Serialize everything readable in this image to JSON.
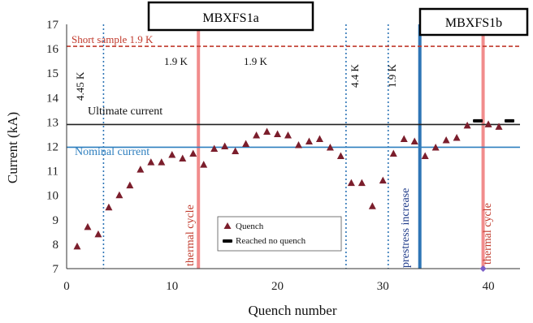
{
  "chart_data": {
    "type": "scatter",
    "xlabel": "Quench number",
    "ylabel": "Current (kA)",
    "xlim": [
      0,
      43
    ],
    "ylim": [
      7,
      17
    ],
    "x_ticks": [
      0,
      10,
      20,
      30,
      40
    ],
    "y_ticks": [
      7,
      8,
      9,
      10,
      11,
      12,
      13,
      14,
      15,
      16,
      17
    ],
    "grid": false,
    "legend_position": "bottom-center",
    "series": [
      {
        "name": "Quench",
        "marker": "triangle",
        "color": "#7b1e2c",
        "x": [
          1,
          2,
          3,
          4,
          5,
          6,
          7,
          8,
          9,
          10,
          11,
          12,
          13,
          14,
          15,
          16,
          17,
          18,
          19,
          20,
          21,
          22,
          23,
          24,
          25,
          26,
          27,
          28,
          29,
          30,
          31,
          32,
          33,
          34,
          35,
          36,
          37,
          38,
          40,
          41
        ],
        "y": [
          7.9,
          8.7,
          8.4,
          9.5,
          10.0,
          10.4,
          11.05,
          11.35,
          11.35,
          11.65,
          11.5,
          11.7,
          11.25,
          11.9,
          12.0,
          11.8,
          12.1,
          12.45,
          12.6,
          12.5,
          12.45,
          12.05,
          12.2,
          12.3,
          11.95,
          11.6,
          10.5,
          10.5,
          9.55,
          10.6,
          11.7,
          12.3,
          12.2,
          11.6,
          11.95,
          12.25,
          12.35,
          12.85,
          12.9,
          12.8
        ]
      },
      {
        "name": "Reached no quench",
        "marker": "dash",
        "color": "#000000",
        "x": [
          39,
          42
        ],
        "y": [
          13.05,
          13.05
        ]
      }
    ],
    "extra_point": {
      "x": 39.5,
      "y": 7.0,
      "color": "#7b5fc7"
    },
    "hlines": [
      {
        "y": 16.1,
        "label": "Short sample 1.9 K",
        "color": "#c0392b",
        "style": "dashed"
      },
      {
        "y": 12.9,
        "label": "Ultimate current",
        "color": "#222222",
        "style": "solid"
      },
      {
        "y": 11.97,
        "label": "Nominal current",
        "color": "#2e7fbf",
        "style": "solid"
      }
    ],
    "vlines": [
      {
        "x": 3.5,
        "color": "#2e75b6",
        "style": "dotted"
      },
      {
        "x": 26.5,
        "color": "#2e75b6",
        "style": "dotted"
      },
      {
        "x": 30.5,
        "color": "#2e75b6",
        "style": "dotted"
      },
      {
        "x": 12.5,
        "color": "#f08080",
        "style": "solid"
      },
      {
        "x": 33.5,
        "color": "#2e75b6",
        "style": "solid"
      },
      {
        "x": 39.5,
        "color": "#f08080",
        "style": "solid"
      }
    ],
    "annotations": [
      "4.45 K",
      "1.9 K",
      "1.9 K",
      "4.4 K",
      "1.9 K",
      "thermal cycle",
      "prestress increase",
      "thermal cycle"
    ],
    "boxes": [
      "MBXFS1a",
      "MBXFS1b"
    ]
  }
}
